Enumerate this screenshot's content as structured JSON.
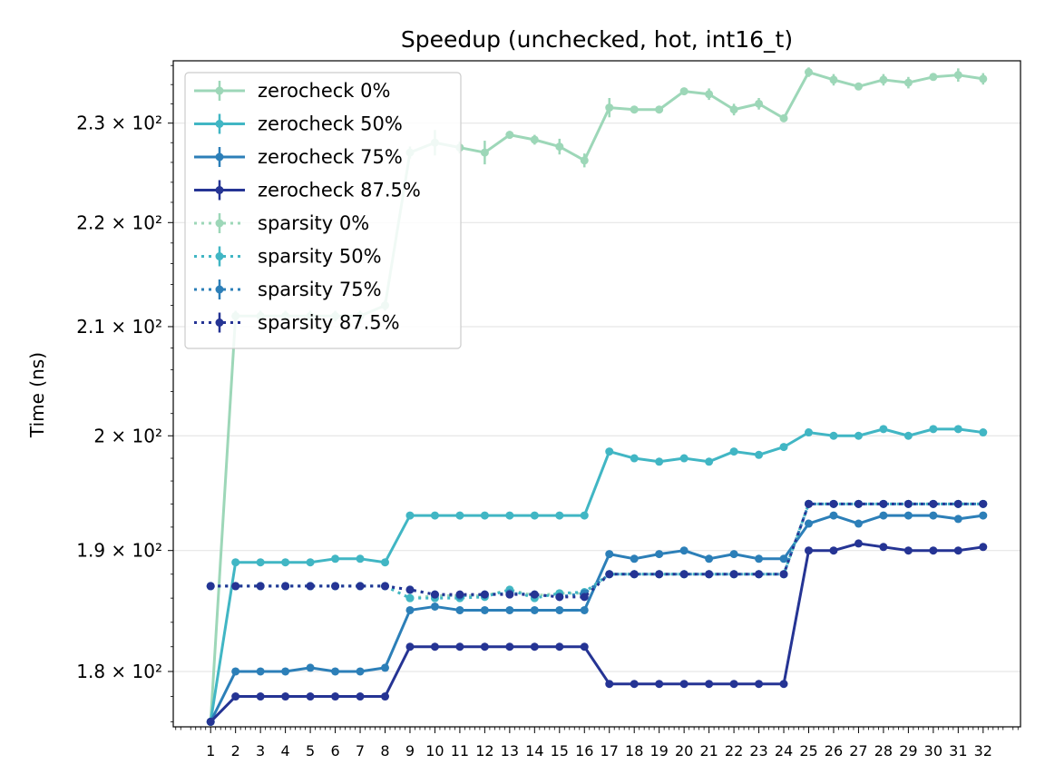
{
  "chart_data": {
    "type": "line",
    "title": "Speedup (unchecked, hot, int16_t)",
    "xlabel": "",
    "ylabel": "Time (ns)",
    "yscale": "log",
    "ylim": [
      175.6,
      236.5
    ],
    "xlim": [
      -0.5,
      33.5
    ],
    "grid": "horizontal",
    "legend_position": "upper left",
    "x": [
      1,
      2,
      3,
      4,
      5,
      6,
      7,
      8,
      9,
      10,
      11,
      12,
      13,
      14,
      15,
      16,
      17,
      18,
      19,
      20,
      21,
      22,
      23,
      24,
      25,
      26,
      27,
      28,
      29,
      30,
      31,
      32
    ],
    "xtick_labels": [
      "1",
      "2",
      "3",
      "4",
      "5",
      "6",
      "7",
      "8",
      "9",
      "10",
      "11",
      "12",
      "13",
      "14",
      "15",
      "16",
      "17",
      "18",
      "19",
      "20",
      "21",
      "22",
      "23",
      "24",
      "25",
      "26",
      "27",
      "28",
      "29",
      "30",
      "31",
      "32"
    ],
    "yticks": [
      {
        "value": 180,
        "label": "1.8 × 10²"
      },
      {
        "value": 190,
        "label": "1.9 × 10²"
      },
      {
        "value": 200,
        "label": "2 × 10²"
      },
      {
        "value": 210,
        "label": "2.1 × 10²"
      },
      {
        "value": 220,
        "label": "2.2 × 10²"
      },
      {
        "value": 230,
        "label": "2.3 × 10²"
      }
    ],
    "series": [
      {
        "name": "zerocheck 0%",
        "color": "#9dd7b8",
        "style": "solid",
        "values": [
          176,
          211,
          211,
          211,
          211,
          211,
          211,
          212,
          227,
          228,
          227.5,
          227,
          228.8,
          228.3,
          227.6,
          226.2,
          231.6,
          231.4,
          231.4,
          233.3,
          233,
          231.4,
          232,
          230.5,
          235.3,
          234.5,
          233.8,
          234.5,
          234.2,
          234.8,
          235,
          234.6
        ],
        "errors": [
          0.3,
          0.5,
          0.5,
          0.5,
          0.5,
          0.5,
          0.5,
          0.5,
          0.6,
          1.3,
          0.6,
          1.2,
          0.4,
          0.5,
          0.8,
          0.7,
          1.0,
          0.4,
          0.4,
          0.3,
          0.6,
          0.6,
          0.6,
          0.3,
          0.5,
          0.6,
          0.4,
          0.6,
          0.6,
          0.3,
          0.7,
          0.6
        ]
      },
      {
        "name": "zerocheck 50%",
        "color": "#41b6c4",
        "style": "solid",
        "values": [
          176,
          189,
          189,
          189,
          189,
          189.3,
          189.3,
          189,
          193,
          193,
          193,
          193,
          193,
          193,
          193,
          193,
          198.6,
          198,
          197.7,
          198,
          197.7,
          198.6,
          198.3,
          199,
          200.3,
          200,
          200,
          200.6,
          200,
          200.6,
          200.6,
          200.3
        ],
        "errors": [
          0.2,
          0.2,
          0.2,
          0.2,
          0.2,
          0.2,
          0.2,
          0.2,
          0.2,
          0.2,
          0.2,
          0.2,
          0.2,
          0.2,
          0.2,
          0.2,
          0.3,
          0.2,
          0.2,
          0.2,
          0.2,
          0.3,
          0.2,
          0.2,
          0.3,
          0.2,
          0.2,
          0.2,
          0.2,
          0.2,
          0.2,
          0.3
        ]
      },
      {
        "name": "zerocheck 75%",
        "color": "#2c7fb8",
        "style": "solid",
        "values": [
          176,
          180,
          180,
          180,
          180.3,
          180,
          180,
          180.3,
          185,
          185.3,
          185,
          185,
          185,
          185,
          185,
          185,
          189.7,
          189.3,
          189.7,
          190,
          189.3,
          189.7,
          189.3,
          189.3,
          192.3,
          193,
          192.3,
          193,
          193,
          193,
          192.7,
          193
        ],
        "errors": [
          0.2,
          0.2,
          0.2,
          0.2,
          0.2,
          0.2,
          0.2,
          0.2,
          0.2,
          0.2,
          0.2,
          0.2,
          0.2,
          0.2,
          0.2,
          0.2,
          0.2,
          0.2,
          0.2,
          0.2,
          0.2,
          0.2,
          0.2,
          0.2,
          0.2,
          0.2,
          0.2,
          0.2,
          0.2,
          0.2,
          0.2,
          0.2
        ]
      },
      {
        "name": "zerocheck 87.5%",
        "color": "#253494",
        "style": "solid",
        "values": [
          176,
          178,
          178,
          178,
          178,
          178,
          178,
          178,
          182,
          182,
          182,
          182,
          182,
          182,
          182,
          182,
          179,
          179,
          179,
          179,
          179,
          179,
          179,
          179,
          190,
          190,
          190.6,
          190.3,
          190,
          190,
          190,
          190.3
        ],
        "errors": [
          0.2,
          0.2,
          0.2,
          0.2,
          0.2,
          0.2,
          0.2,
          0.2,
          0.2,
          0.2,
          0.2,
          0.2,
          0.2,
          0.2,
          0.2,
          0.2,
          0.2,
          0.2,
          0.2,
          0.2,
          0.2,
          0.2,
          0.2,
          0.2,
          0.2,
          0.2,
          0.2,
          0.2,
          0.2,
          0.2,
          0.2,
          0.2
        ]
      },
      {
        "name": "sparsity 0%",
        "color": "#9dd7b8",
        "style": "dotted",
        "values": [
          187,
          187,
          187,
          187,
          187,
          187,
          187,
          187,
          186,
          186.2,
          186.2,
          186.2,
          186.7,
          186.2,
          186.4,
          186.4,
          188,
          188,
          188,
          188,
          188,
          188,
          188,
          188,
          194,
          194,
          194,
          194,
          194,
          194,
          194,
          194
        ],
        "errors": [
          0.2,
          0.2,
          0.2,
          0.2,
          0.2,
          0.2,
          0.2,
          0.2,
          0.2,
          0.2,
          0.2,
          0.2,
          0.2,
          0.2,
          0.2,
          0.2,
          0.2,
          0.2,
          0.2,
          0.2,
          0.2,
          0.2,
          0.2,
          0.2,
          0.2,
          0.2,
          0.2,
          0.2,
          0.2,
          0.2,
          0.2,
          0.2
        ]
      },
      {
        "name": "sparsity 50%",
        "color": "#41b6c4",
        "style": "dotted",
        "values": [
          187,
          187,
          187,
          187,
          187,
          187,
          187,
          187,
          186,
          186,
          186,
          186.1,
          186.7,
          186,
          186.4,
          186.5,
          188,
          188,
          188,
          188,
          188,
          188,
          188,
          188,
          194,
          194,
          194,
          194,
          194,
          194,
          194,
          194
        ],
        "errors": [
          0.2,
          0.2,
          0.2,
          0.2,
          0.2,
          0.2,
          0.2,
          0.2,
          0.2,
          0.2,
          0.2,
          0.2,
          0.2,
          0.2,
          0.2,
          0.2,
          0.2,
          0.2,
          0.2,
          0.2,
          0.2,
          0.2,
          0.2,
          0.2,
          0.2,
          0.2,
          0.2,
          0.2,
          0.2,
          0.2,
          0.2,
          0.2
        ]
      },
      {
        "name": "sparsity 75%",
        "color": "#2c7fb8",
        "style": "dotted",
        "values": [
          187,
          187,
          187,
          187,
          187,
          187,
          187,
          187,
          186.7,
          186.3,
          186.2,
          186.3,
          186.4,
          186.3,
          186.1,
          186.4,
          188,
          188,
          188,
          188,
          188,
          188,
          188,
          188,
          194,
          194,
          194,
          194,
          194,
          194,
          194,
          194
        ],
        "errors": [
          0.2,
          0.2,
          0.2,
          0.2,
          0.2,
          0.2,
          0.2,
          0.2,
          0.2,
          0.2,
          0.2,
          0.2,
          0.2,
          0.2,
          0.2,
          0.2,
          0.2,
          0.2,
          0.2,
          0.2,
          0.2,
          0.2,
          0.2,
          0.2,
          0.2,
          0.2,
          0.2,
          0.2,
          0.2,
          0.2,
          0.2,
          0.2
        ]
      },
      {
        "name": "sparsity 87.5%",
        "color": "#253494",
        "style": "dotted",
        "values": [
          187,
          187,
          187,
          187,
          187,
          187,
          187,
          187,
          186.7,
          186.3,
          186.3,
          186.3,
          186.3,
          186.3,
          186.1,
          186.1,
          188,
          188,
          188,
          188,
          188,
          188,
          188,
          188,
          194,
          194,
          194,
          194,
          194,
          194,
          194,
          194
        ],
        "errors": [
          0.2,
          0.2,
          0.2,
          0.2,
          0.2,
          0.2,
          0.2,
          0.2,
          0.2,
          0.2,
          0.2,
          0.2,
          0.2,
          0.2,
          0.2,
          0.2,
          0.2,
          0.2,
          0.2,
          0.2,
          0.2,
          0.2,
          0.2,
          0.2,
          0.2,
          0.2,
          0.2,
          0.2,
          0.2,
          0.2,
          0.2,
          0.2
        ]
      }
    ]
  }
}
